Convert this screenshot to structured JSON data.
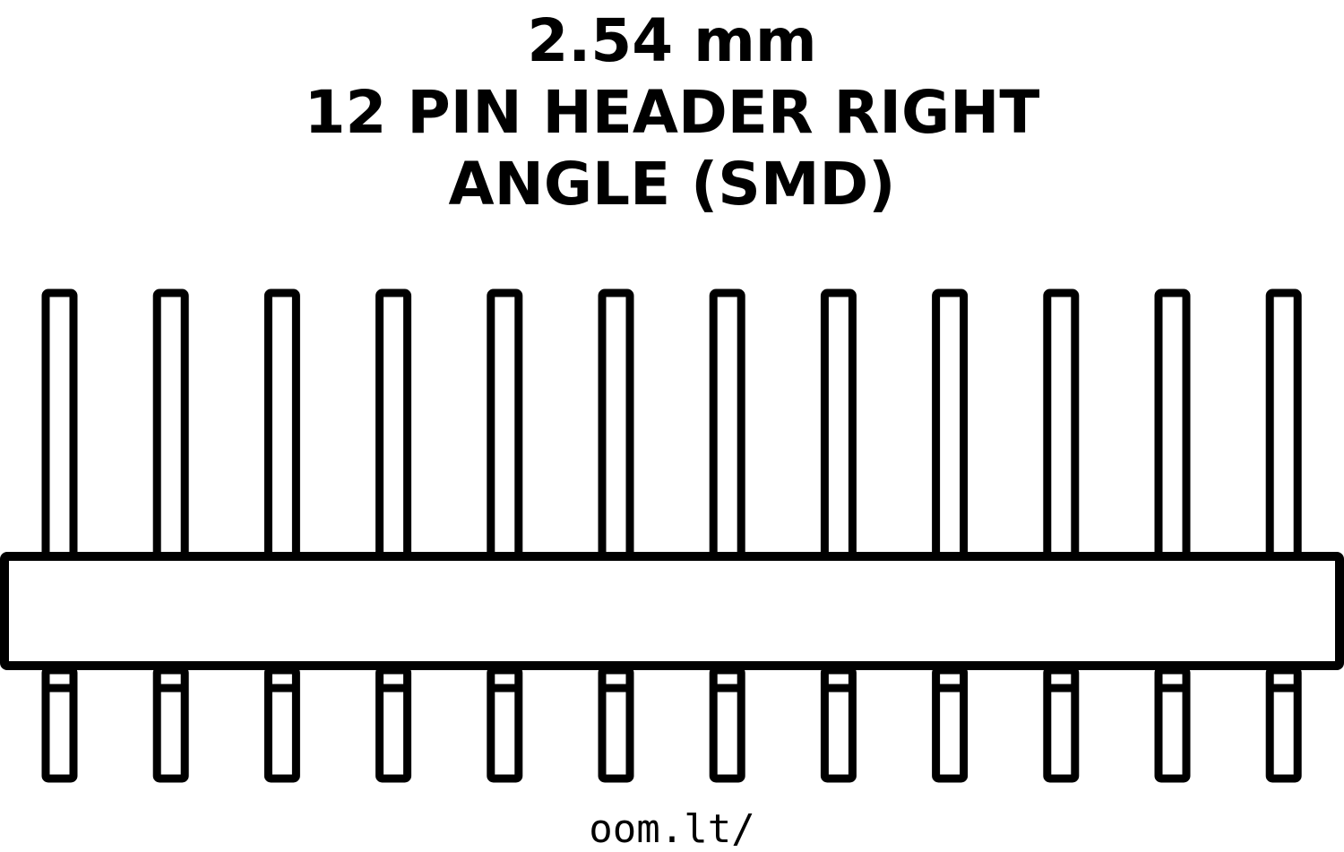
{
  "title": {
    "line1": "2.54 mm",
    "line2": "12 PIN HEADER RIGHT",
    "line3": "ANGLE (SMD)"
  },
  "footer": {
    "url": "oom.lt/"
  },
  "diagram": {
    "pin_count": 12,
    "colors": {
      "stroke": "#000000",
      "fill": "#ffffff"
    }
  }
}
